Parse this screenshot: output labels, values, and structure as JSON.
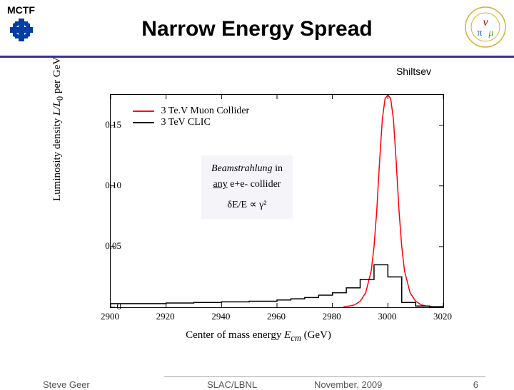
{
  "header": {
    "mctf": "MCTF",
    "title": "Narrow Energy Spread"
  },
  "attribution": "Shiltsev",
  "chart": {
    "type": "line",
    "x_label": "Center of mass energy E_cm (GeV)",
    "y_label": "Luminosity density L/L₀ per GeV",
    "x_min": 2900,
    "x_max": 3020,
    "y_min": 0,
    "y_max": 0.175,
    "x_ticks": [
      2900,
      2920,
      2940,
      2960,
      2980,
      3000,
      3020
    ],
    "y_ticks": [
      0,
      0.05,
      0.1,
      0.15
    ],
    "y_tick_labels": [
      "0",
      "0.05",
      "0.10",
      "0.15"
    ],
    "plot_border_color": "#000000",
    "background_color": "#ffffff",
    "series": [
      {
        "name": "muon",
        "label": "3 Te.V Muon Collider",
        "color": "#ff0000",
        "line_width": 1.5,
        "points": [
          [
            2984,
            0.0005
          ],
          [
            2986,
            0.001
          ],
          [
            2988,
            0.002
          ],
          [
            2990,
            0.005
          ],
          [
            2992,
            0.012
          ],
          [
            2994,
            0.03
          ],
          [
            2995,
            0.05
          ],
          [
            2996,
            0.08
          ],
          [
            2997,
            0.12
          ],
          [
            2998,
            0.155
          ],
          [
            2999,
            0.172
          ],
          [
            3000,
            0.175
          ],
          [
            3001,
            0.172
          ],
          [
            3002,
            0.155
          ],
          [
            3003,
            0.12
          ],
          [
            3004,
            0.08
          ],
          [
            3005,
            0.05
          ],
          [
            3006,
            0.03
          ],
          [
            3008,
            0.012
          ],
          [
            3010,
            0.005
          ],
          [
            3012,
            0.002
          ],
          [
            3014,
            0.001
          ],
          [
            3016,
            0.0005
          ]
        ]
      },
      {
        "name": "clic",
        "label": "3 TeV CLIC",
        "color": "#000000",
        "line_width": 1.5,
        "step": true,
        "points": [
          [
            2900,
            0.003
          ],
          [
            2910,
            0.003
          ],
          [
            2920,
            0.0035
          ],
          [
            2930,
            0.004
          ],
          [
            2940,
            0.0045
          ],
          [
            2950,
            0.005
          ],
          [
            2960,
            0.006
          ],
          [
            2965,
            0.007
          ],
          [
            2970,
            0.008
          ],
          [
            2975,
            0.01
          ],
          [
            2980,
            0.012
          ],
          [
            2985,
            0.016
          ],
          [
            2990,
            0.023
          ],
          [
            2995,
            0.035
          ],
          [
            3000,
            0.025
          ],
          [
            3005,
            0.004
          ],
          [
            3010,
            0.001
          ],
          [
            3015,
            0.0005
          ],
          [
            3020,
            0
          ]
        ]
      }
    ]
  },
  "annotation": {
    "line1_a": "Beamstrahlung",
    "line1_b": " in",
    "line2_a": "any",
    "line2_b": " e+e- collider",
    "line3": "δE/E ∝ γ²"
  },
  "footer": {
    "author": "Steve Geer",
    "venue": "SLAC/LBNL",
    "date": "November, 2009",
    "page": "6"
  }
}
